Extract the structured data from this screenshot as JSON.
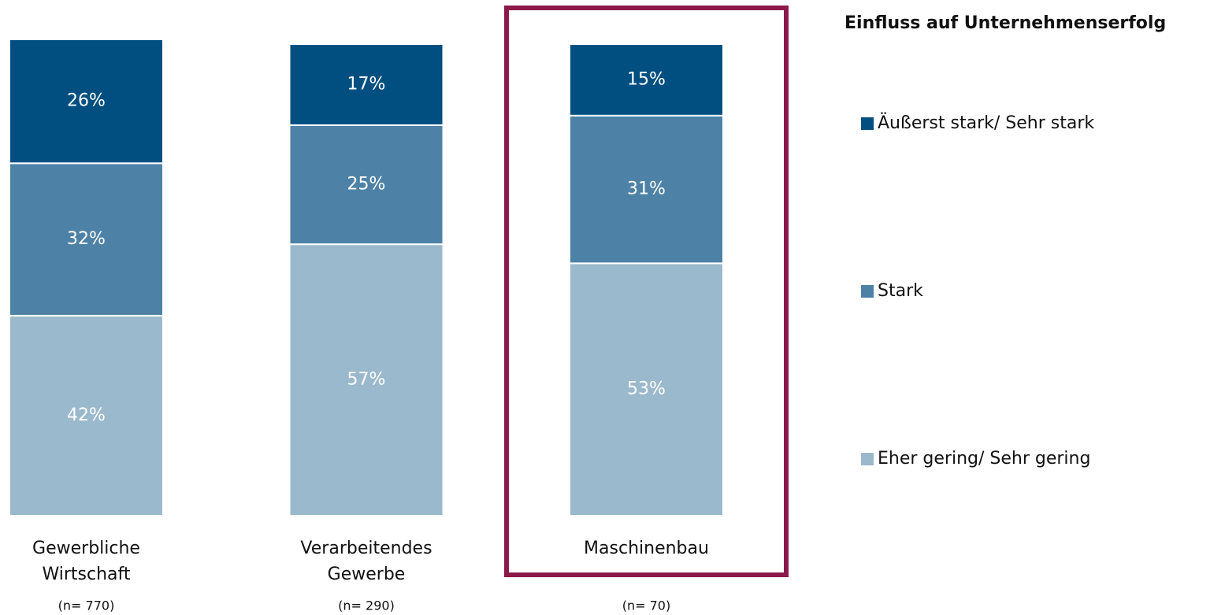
{
  "chart_data": {
    "type": "stacked_bar",
    "legend_title": "Einfluss auf Unternehmenserfolg",
    "categories": [
      "Gewerbliche Wirtschaft",
      "Verarbeitendes Gewerbe",
      "Maschinenbau"
    ],
    "sample_sizes": [
      "(n= 770)",
      "(n= 290)",
      "(n= 70)"
    ],
    "series": [
      {
        "name": "Eher gering/ Sehr gering",
        "color": "#9bb9cc",
        "values": [
          42,
          57,
          53
        ],
        "value_labels": [
          "42%",
          "57%",
          "53%"
        ]
      },
      {
        "name": "Stark",
        "color": "#4d82a6",
        "values": [
          32,
          25,
          31
        ],
        "value_labels": [
          "32%",
          "25%",
          "31%"
        ]
      },
      {
        "name": "Äußerst stark/ Sehr stark",
        "color": "#004f80",
        "values": [
          26,
          17,
          15
        ],
        "value_labels": [
          "26%",
          "17%",
          "15%"
        ]
      }
    ],
    "ylim": [
      0,
      100
    ],
    "legend": "right"
  }
}
